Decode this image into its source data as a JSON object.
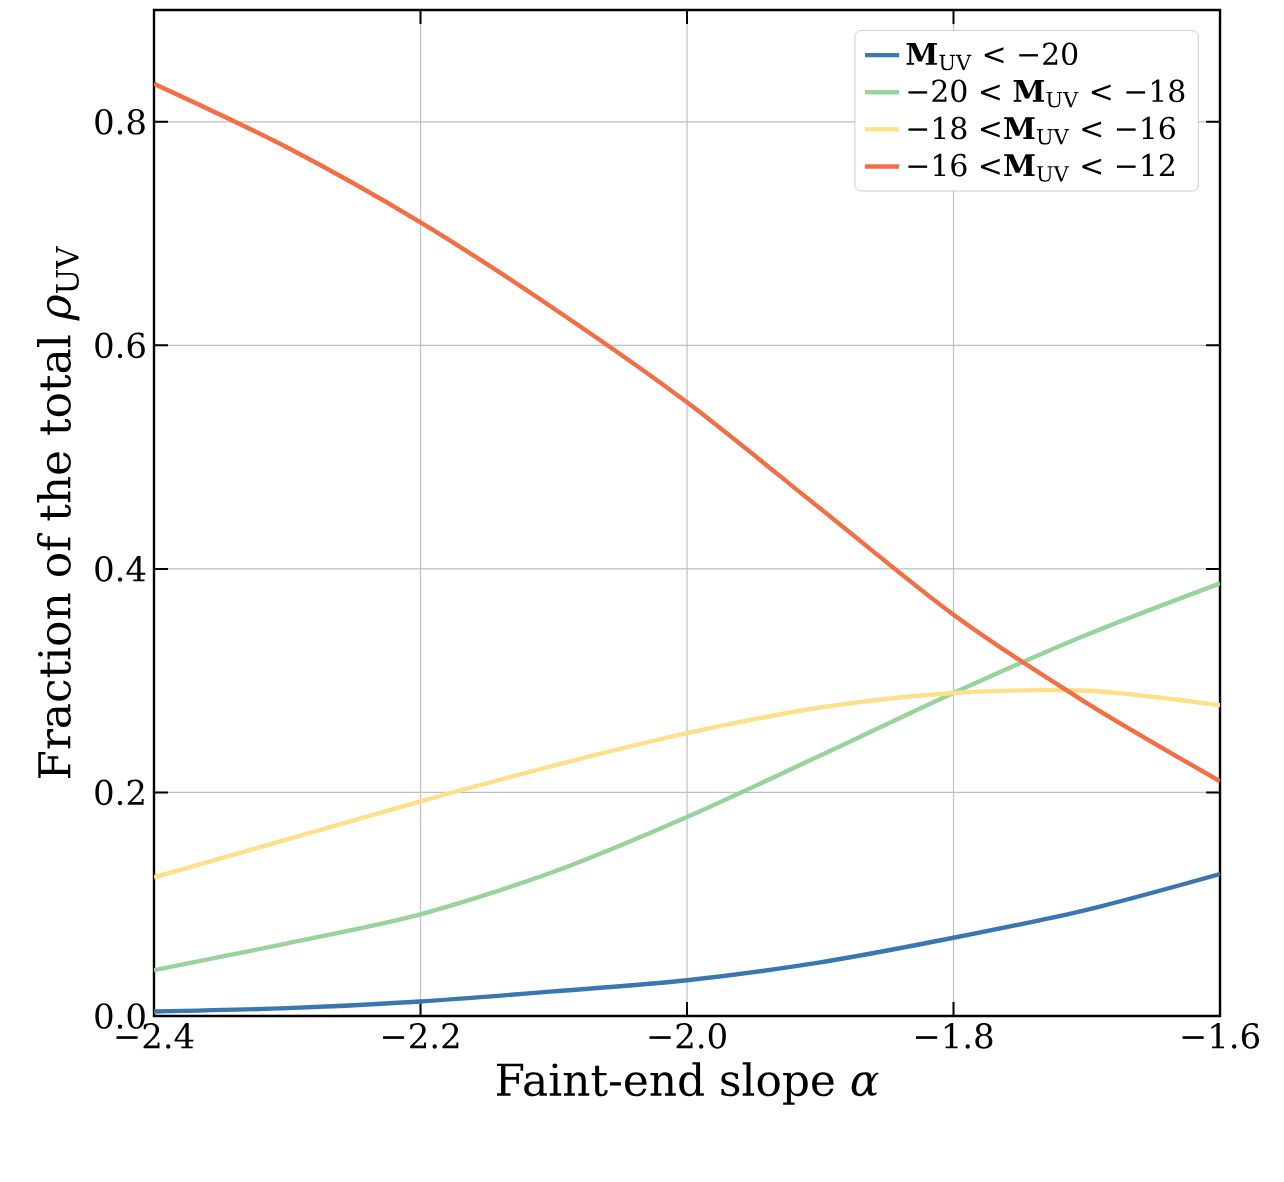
{
  "chart_data": {
    "type": "line",
    "xlabel": "Faint-end slope *α*",
    "ylabel": "Fraction of the total *ρ*$_{UV}$",
    "x": [
      -2.4,
      -2.3,
      -2.2,
      -2.1,
      -2.0,
      -1.9,
      -1.8,
      -1.7,
      -1.6
    ],
    "series": [
      {
        "name": "**M**$_{UV}$ < −20",
        "color": "#3a76b0",
        "values": [
          0.004,
          0.007,
          0.013,
          0.022,
          0.032,
          0.048,
          0.07,
          0.095,
          0.127
        ]
      },
      {
        "name": "−20 < **M**$_{UV}$ < −18",
        "color": "#97d39b",
        "values": [
          0.041,
          0.065,
          0.091,
          0.129,
          0.178,
          0.233,
          0.289,
          0.341,
          0.387
        ]
      },
      {
        "name": "−18 <**M**$_{UV}$ < −16",
        "color": "#fee08b",
        "values": [
          0.124,
          0.158,
          0.192,
          0.224,
          0.253,
          0.276,
          0.289,
          0.291,
          0.278
        ]
      },
      {
        "name": "−16 <**M**$_{UV}$ < −12",
        "color": "#f46d43",
        "values": [
          0.834,
          0.777,
          0.71,
          0.633,
          0.549,
          0.454,
          0.359,
          0.28,
          0.21
        ]
      }
    ],
    "xlim": [
      -2.4,
      -1.6
    ],
    "ylim": [
      0,
      0.9
    ],
    "xticks": [
      {
        "value": -2.4,
        "label": "−2.4"
      },
      {
        "value": -2.2,
        "label": "−2.2"
      },
      {
        "value": -2.0,
        "label": "−2.0"
      },
      {
        "value": -1.8,
        "label": "−1.8"
      },
      {
        "value": -1.6,
        "label": "−1.6"
      }
    ],
    "yticks": [
      {
        "value": 0,
        "label": "0.0"
      },
      0.2,
      0.4,
      0.6,
      0.8
    ],
    "grid": true,
    "legend": "top right",
    "marker": "none",
    "line_style": "solid"
  }
}
